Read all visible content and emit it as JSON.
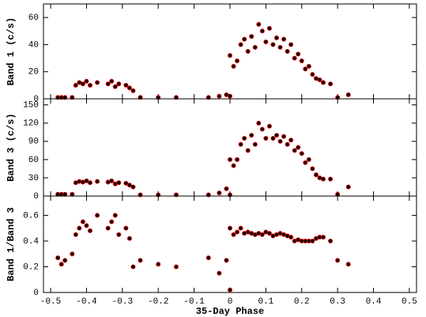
{
  "chart_data": [
    {
      "type": "scatter",
      "ylabel": "Band 1 (c/s)",
      "x": [
        -0.48,
        -0.47,
        -0.46,
        -0.44,
        -0.43,
        -0.42,
        -0.41,
        -0.4,
        -0.39,
        -0.37,
        -0.34,
        -0.33,
        -0.32,
        -0.31,
        -0.29,
        -0.28,
        -0.27,
        -0.25,
        -0.2,
        -0.15,
        -0.06,
        -0.03,
        -0.01,
        0.0,
        0.0,
        0.01,
        0.02,
        0.03,
        0.04,
        0.05,
        0.06,
        0.07,
        0.08,
        0.09,
        0.1,
        0.11,
        0.12,
        0.13,
        0.14,
        0.15,
        0.16,
        0.17,
        0.18,
        0.19,
        0.2,
        0.21,
        0.22,
        0.23,
        0.24,
        0.25,
        0.26,
        0.28,
        0.3,
        0.33
      ],
      "y": [
        1,
        1,
        1,
        1,
        10,
        12,
        11,
        13,
        10,
        12,
        11,
        13,
        9,
        11,
        10,
        8,
        6,
        1,
        1,
        1,
        1,
        2,
        3,
        2,
        32,
        24,
        28,
        40,
        44,
        35,
        46,
        38,
        55,
        50,
        42,
        52,
        40,
        45,
        38,
        44,
        35,
        40,
        30,
        33,
        28,
        22,
        24,
        18,
        15,
        14,
        12,
        11,
        1,
        3
      ],
      "color": "#000000",
      "error_color": "#ff0000",
      "xlim": [
        -0.52,
        0.52
      ],
      "xticks": [
        -0.5,
        -0.4,
        -0.3,
        -0.2,
        -0.1,
        0,
        0.1,
        0.2,
        0.3,
        0.4,
        0.5
      ],
      "ylim": [
        0,
        70
      ],
      "yticks": [
        0,
        20,
        40,
        60
      ]
    },
    {
      "type": "scatter",
      "ylabel": "Band 3 (c/s)",
      "x": [
        -0.48,
        -0.47,
        -0.46,
        -0.44,
        -0.43,
        -0.42,
        -0.41,
        -0.4,
        -0.39,
        -0.37,
        -0.34,
        -0.33,
        -0.32,
        -0.31,
        -0.29,
        -0.28,
        -0.27,
        -0.25,
        -0.2,
        -0.15,
        -0.06,
        -0.03,
        -0.01,
        0.0,
        0.0,
        0.01,
        0.02,
        0.03,
        0.04,
        0.05,
        0.06,
        0.07,
        0.08,
        0.09,
        0.1,
        0.11,
        0.12,
        0.13,
        0.14,
        0.15,
        0.16,
        0.17,
        0.18,
        0.19,
        0.2,
        0.21,
        0.22,
        0.23,
        0.24,
        0.25,
        0.26,
        0.28,
        0.3,
        0.33
      ],
      "y": [
        3,
        3,
        3,
        3,
        22,
        24,
        23,
        25,
        22,
        24,
        23,
        25,
        20,
        22,
        21,
        18,
        15,
        2,
        2,
        2,
        2,
        5,
        12,
        2,
        60,
        50,
        60,
        85,
        95,
        75,
        100,
        85,
        120,
        110,
        95,
        115,
        95,
        100,
        90,
        98,
        85,
        92,
        75,
        80,
        70,
        55,
        60,
        45,
        35,
        30,
        28,
        28,
        3,
        15
      ],
      "color": "#000000",
      "error_color": "#ff0000",
      "xlim": [
        -0.52,
        0.52
      ],
      "xticks": [
        -0.5,
        -0.4,
        -0.3,
        -0.2,
        -0.1,
        0,
        0.1,
        0.2,
        0.3,
        0.4,
        0.5
      ],
      "ylim": [
        0,
        160
      ],
      "yticks": [
        0,
        30,
        60,
        90,
        120,
        150
      ]
    },
    {
      "type": "scatter",
      "ylabel": "Band 1/Band 3",
      "xlabel": "35-Day Phase",
      "x": [
        -0.48,
        -0.47,
        -0.46,
        -0.44,
        -0.43,
        -0.42,
        -0.41,
        -0.4,
        -0.39,
        -0.37,
        -0.34,
        -0.33,
        -0.32,
        -0.31,
        -0.29,
        -0.28,
        -0.27,
        -0.25,
        -0.2,
        -0.15,
        -0.06,
        -0.03,
        -0.01,
        0.0,
        0.0,
        0.01,
        0.02,
        0.03,
        0.04,
        0.05,
        0.06,
        0.07,
        0.08,
        0.09,
        0.1,
        0.11,
        0.12,
        0.13,
        0.14,
        0.15,
        0.16,
        0.17,
        0.18,
        0.19,
        0.2,
        0.21,
        0.22,
        0.23,
        0.24,
        0.25,
        0.26,
        0.28,
        0.3,
        0.33
      ],
      "y": [
        0.27,
        0.22,
        0.25,
        0.3,
        0.45,
        0.5,
        0.55,
        0.52,
        0.48,
        0.6,
        0.5,
        0.55,
        0.6,
        0.45,
        0.5,
        0.42,
        0.2,
        0.25,
        0.22,
        0.2,
        0.27,
        0.15,
        0.25,
        0.02,
        0.5,
        0.45,
        0.47,
        0.5,
        0.46,
        0.47,
        0.46,
        0.45,
        0.46,
        0.45,
        0.47,
        0.46,
        0.44,
        0.45,
        0.46,
        0.45,
        0.44,
        0.43,
        0.4,
        0.41,
        0.4,
        0.4,
        0.4,
        0.4,
        0.42,
        0.43,
        0.43,
        0.4,
        0.25,
        0.22
      ],
      "color": "#000000",
      "error_color": "#ff0000",
      "xlim": [
        -0.52,
        0.52
      ],
      "xticks": [
        -0.5,
        -0.4,
        -0.3,
        -0.2,
        -0.1,
        0,
        0.1,
        0.2,
        0.3,
        0.4,
        0.5
      ],
      "ylim": [
        0,
        0.75
      ],
      "yticks": [
        0,
        0.2,
        0.4,
        0.6
      ]
    }
  ]
}
